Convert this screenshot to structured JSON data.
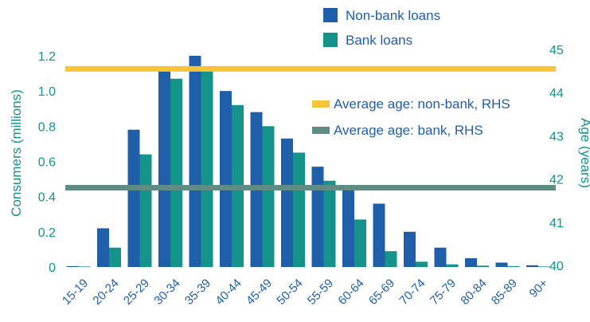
{
  "chart_data": {
    "type": "bar",
    "categories": [
      "15-19",
      "20-24",
      "25-29",
      "30-34",
      "35-39",
      "40-44",
      "45-49",
      "50-54",
      "55-59",
      "60-64",
      "65-69",
      "70-74",
      "75-79",
      "80-84",
      "85-89",
      "90+"
    ],
    "series": [
      {
        "name": "Non-bank loans",
        "color": "#1f5ea8",
        "values": [
          0.005,
          0.22,
          0.78,
          1.14,
          1.2,
          1.0,
          0.88,
          0.73,
          0.57,
          0.45,
          0.36,
          0.2,
          0.11,
          0.05,
          0.025,
          0.01
        ]
      },
      {
        "name": "Bank loans",
        "color": "#13938a",
        "values": [
          0.003,
          0.11,
          0.64,
          1.07,
          1.12,
          0.92,
          0.8,
          0.65,
          0.49,
          0.27,
          0.09,
          0.03,
          0.015,
          0.008,
          0.005,
          0.003
        ]
      }
    ],
    "lines": [
      {
        "name": "Average age: non-bank, RHS",
        "color": "#f8c43a",
        "value": 44.55
      },
      {
        "name": "Average age: bank, RHS",
        "color": "#5f8c84",
        "value": 41.8
      }
    ],
    "left_axis": {
      "label": "Consumers (millions)",
      "min": 0,
      "max": 1.2,
      "ticks": [
        "0",
        "0.2",
        "0.4",
        "0.6",
        "0.8",
        "1.0",
        "1.2"
      ]
    },
    "right_axis": {
      "label": "Age (years)",
      "min": 40,
      "max": 45,
      "ticks": [
        "40",
        "41",
        "42",
        "43",
        "44",
        "45"
      ]
    },
    "grid": false,
    "legend_position": "top-right"
  }
}
